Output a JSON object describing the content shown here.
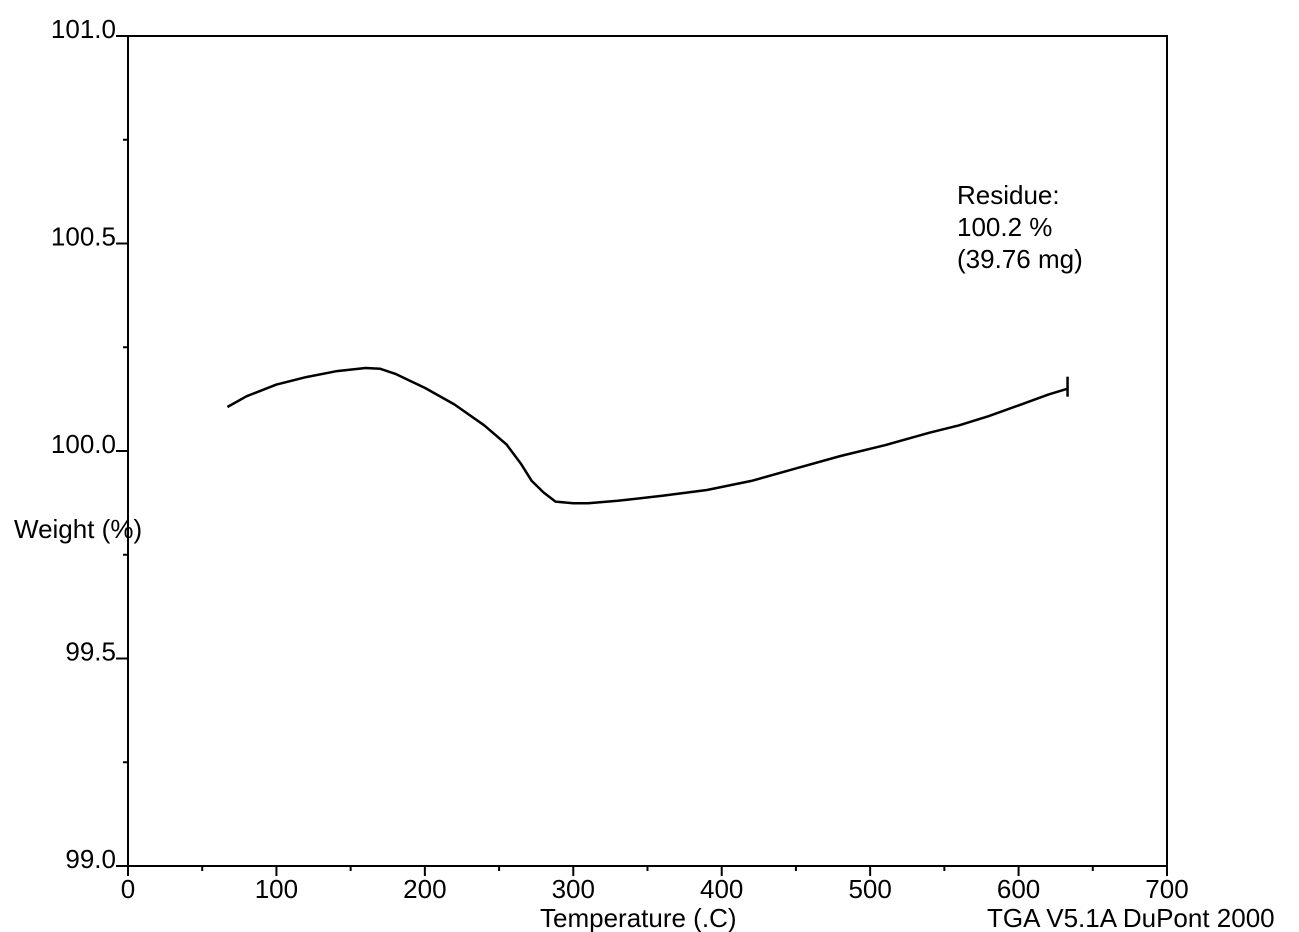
{
  "chart_data": {
    "type": "line",
    "title": "",
    "xlabel": "Temperature (.C)",
    "ylabel": "Weight (%)",
    "xlim": [
      0,
      700
    ],
    "ylim": [
      99.0,
      101.0
    ],
    "x_ticks": [
      "0",
      "100",
      "200",
      "300",
      "400",
      "500",
      "600",
      "700"
    ],
    "x_tick_values": [
      0,
      100,
      200,
      300,
      400,
      500,
      600,
      700
    ],
    "y_ticks": [
      "99.0",
      "99.5",
      "100.0",
      "100.5",
      "101.0"
    ],
    "y_tick_values": [
      99.0,
      99.5,
      100.0,
      100.5,
      101.0
    ],
    "y_minor_step": 0.25,
    "x_minor_step": 50,
    "grid": false,
    "series": [
      {
        "color": "#000000",
        "x": [
          67,
          80,
          100,
          120,
          140,
          160,
          170,
          180,
          200,
          220,
          240,
          255,
          265,
          272,
          280,
          288,
          300,
          310,
          330,
          360,
          390,
          420,
          450,
          480,
          510,
          540,
          560,
          580,
          600,
          620,
          633
        ],
        "y": [
          100.106,
          100.132,
          100.16,
          100.178,
          100.192,
          100.2,
          100.198,
          100.186,
          100.152,
          100.112,
          100.062,
          100.016,
          99.968,
          99.928,
          99.9,
          99.878,
          99.874,
          99.874,
          99.88,
          99.892,
          99.906,
          99.928,
          99.958,
          99.988,
          100.014,
          100.044,
          100.062,
          100.084,
          100.11,
          100.136,
          100.15
        ]
      }
    ],
    "end_marker": {
      "x": 633,
      "y": 100.155
    },
    "annotations": [
      {
        "lines": [
          "Residue:",
          "100.2 %",
          "(39.76 mg)"
        ]
      }
    ]
  },
  "footer": "TGA V5.1A DuPont 2000"
}
